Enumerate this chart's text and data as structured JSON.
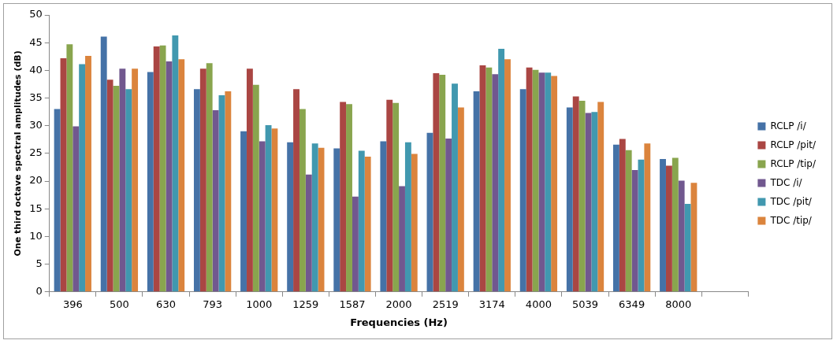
{
  "chart_data": {
    "type": "bar",
    "xlabel": "Frequencies (Hz)",
    "ylabel": "One third octave spectral amplitudes (dB)",
    "categories": [
      "396",
      "500",
      "630",
      "793",
      "1000",
      "1259",
      "1587",
      "2000",
      "2519",
      "3174",
      "4000",
      "5039",
      "6349",
      "8000",
      null
    ],
    "series": [
      {
        "name": "RCLP /i/",
        "color": "#4572a7",
        "values": [
          33,
          46.1,
          39.7,
          36.6,
          29,
          27,
          25.9,
          27.2,
          28.7,
          36.2,
          36.6,
          33.3,
          26.6,
          24,
          null
        ]
      },
      {
        "name": "RCLP /pit/",
        "color": "#aa4643",
        "values": [
          42.2,
          38.3,
          44.3,
          40.3,
          40.3,
          36.6,
          34.3,
          34.7,
          39.5,
          40.9,
          40.5,
          35.3,
          27.6,
          22.8,
          null
        ]
      },
      {
        "name": "RCLP /tip/",
        "color": "#89a54e",
        "values": [
          44.7,
          37.2,
          44.5,
          41.3,
          37.4,
          33,
          33.9,
          34.1,
          39.2,
          40.5,
          40.1,
          34.5,
          25.6,
          24.2,
          null
        ]
      },
      {
        "name": "TDC /i/",
        "color": "#71588f",
        "values": [
          29.9,
          40.3,
          41.6,
          32.8,
          27.2,
          21.2,
          17.2,
          19.1,
          27.7,
          39.3,
          39.6,
          32.3,
          22,
          20.1,
          null
        ]
      },
      {
        "name": "TDC /pit/",
        "color": "#4198af",
        "values": [
          41.1,
          36.6,
          46.3,
          35.5,
          30.1,
          26.8,
          25.5,
          27,
          37.6,
          43.9,
          39.6,
          32.5,
          23.9,
          15.9,
          null
        ]
      },
      {
        "name": "TDC /tip/",
        "color": "#db843d",
        "values": [
          42.6,
          40.3,
          42,
          36.2,
          29.5,
          26,
          24.4,
          24.9,
          33.3,
          42,
          39,
          34.3,
          26.8,
          19.7,
          null
        ]
      }
    ],
    "ylim": [
      0,
      50
    ],
    "yticks": [
      0,
      5,
      10,
      15,
      20,
      25,
      30,
      35,
      40,
      45,
      50
    ],
    "grid": false,
    "legend": "right"
  }
}
